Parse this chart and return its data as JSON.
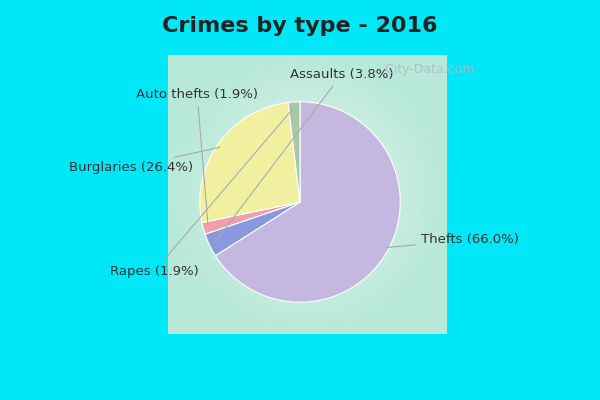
{
  "title": "Crimes by type - 2016",
  "slices": [
    {
      "label": "Thefts (66.0%)",
      "value": 66.0,
      "color": "#c4b8e0"
    },
    {
      "label": "Assaults (3.8%)",
      "value": 3.8,
      "color": "#8899dd"
    },
    {
      "label": "Auto thefts (1.9%)",
      "value": 1.9,
      "color": "#f0a0a8"
    },
    {
      "label": "Burglaries (26.4%)",
      "value": 26.4,
      "color": "#f0f0a0"
    },
    {
      "label": "Rapes (1.9%)",
      "value": 1.9,
      "color": "#a8c8a8"
    }
  ],
  "bg_color_top": "#00e8f8",
  "bg_color_inner_edge": "#b8e8d8",
  "bg_color_inner_center": "#e8f8f0",
  "title_fontsize": 16,
  "label_fontsize": 9.5,
  "watermark": "  City-Data.com",
  "watermark_color": "#aabbcc"
}
